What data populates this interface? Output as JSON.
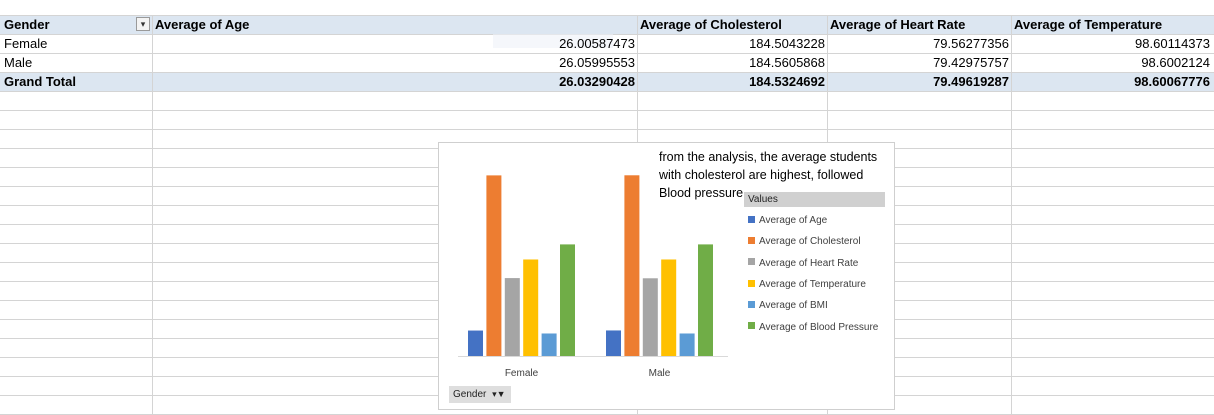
{
  "pivot": {
    "headers": {
      "gender": "Gender",
      "age": "Average of Age",
      "cholesterol": "Average of Cholesterol",
      "heart_rate": "Average of Heart Rate",
      "temperature": "Average of Temperature"
    },
    "rows": [
      {
        "gender": "Female",
        "age": "26.00587473",
        "cholesterol": "184.5043228",
        "heart_rate": "79.56277356",
        "temperature": "98.60114373"
      },
      {
        "gender": "Male",
        "age": "26.05995553",
        "cholesterol": "184.5605868",
        "heart_rate": "79.42975757",
        "temperature": "98.6002124"
      }
    ],
    "total": {
      "gender": "Grand Total",
      "age": "26.03290428",
      "cholesterol": "184.5324692",
      "heart_rate": "79.49619287",
      "temperature": "98.60067776"
    }
  },
  "note": "from the analysis, the average students with cholesterol are highest, followed Blood pressure",
  "gender_filter_label": "Gender",
  "chart_data": {
    "type": "bar",
    "categories": [
      "Female",
      "Male"
    ],
    "legend_title": "Values",
    "legend_position": "right",
    "series": [
      {
        "name": "Average of Age",
        "color": "#4472c4",
        "values": [
          26.0,
          26.1
        ]
      },
      {
        "name": "Average of Cholesterol",
        "color": "#ed7d31",
        "values": [
          184.5,
          184.6
        ]
      },
      {
        "name": "Average of Heart Rate",
        "color": "#a5a5a5",
        "values": [
          79.6,
          79.4
        ]
      },
      {
        "name": "Average of Temperature",
        "color": "#ffc000",
        "values": [
          98.6,
          98.6
        ]
      },
      {
        "name": "Average of BMI",
        "color": "#5b9bd5",
        "values": [
          23.0,
          23.0
        ]
      },
      {
        "name": "Average of Blood Pressure",
        "color": "#70ad47",
        "values": [
          114.0,
          114.0
        ]
      }
    ],
    "ylim": [
      0,
      190
    ]
  }
}
